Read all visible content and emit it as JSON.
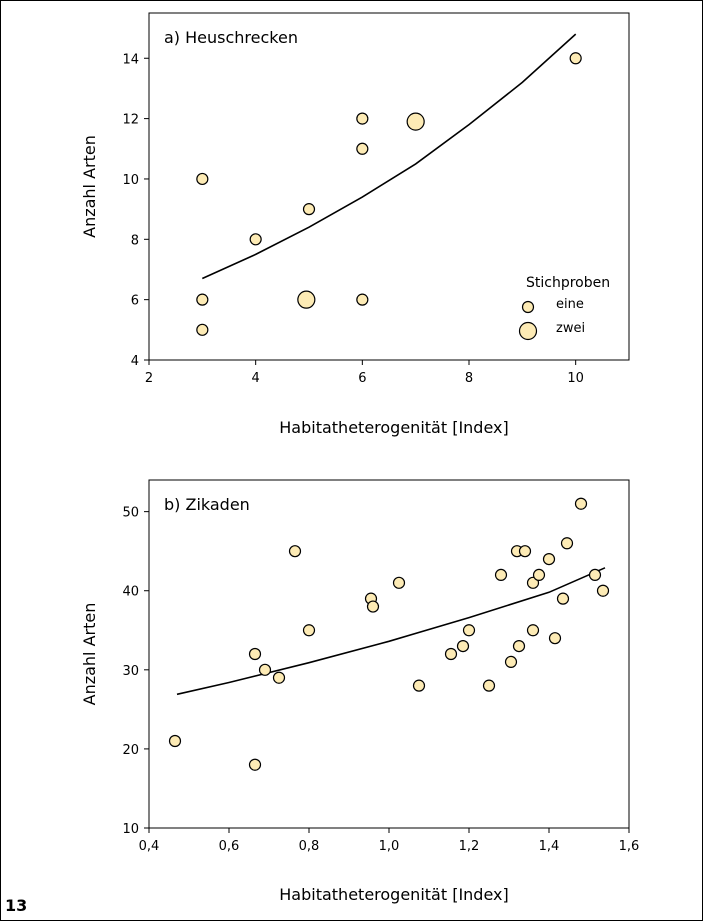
{
  "page_number": "13",
  "colors": {
    "marker_fill": "#FDEBB5",
    "marker_stroke": "#000000",
    "line": "#000000"
  },
  "chart_data": [
    {
      "type": "scatter",
      "title": "a) Heuschrecken",
      "xlabel": "Habitatheterogenität [Index]",
      "ylabel": "Anzahl Arten",
      "xlim": [
        2,
        11
      ],
      "ylim": [
        4,
        15.5
      ],
      "xticks": [
        2,
        4,
        6,
        8,
        10
      ],
      "xtick_labels": [
        "2",
        "4",
        "6",
        "8",
        "10"
      ],
      "yticks": [
        4,
        6,
        8,
        10,
        12,
        14
      ],
      "ytick_labels": [
        "4",
        "6",
        "8",
        "10",
        "12",
        "14"
      ],
      "points": [
        {
          "x": 3,
          "y": 10,
          "n": 1
        },
        {
          "x": 3,
          "y": 6,
          "n": 1
        },
        {
          "x": 3,
          "y": 5,
          "n": 1
        },
        {
          "x": 4,
          "y": 8,
          "n": 1
        },
        {
          "x": 5,
          "y": 9,
          "n": 1
        },
        {
          "x": 4.95,
          "y": 6,
          "n": 2
        },
        {
          "x": 6,
          "y": 12,
          "n": 1
        },
        {
          "x": 6,
          "y": 11,
          "n": 1
        },
        {
          "x": 6,
          "y": 6,
          "n": 1
        },
        {
          "x": 7,
          "y": 11.9,
          "n": 2
        },
        {
          "x": 10,
          "y": 14,
          "n": 1
        }
      ],
      "trend_line": {
        "model": "exponential",
        "x": [
          3,
          4,
          5,
          6,
          7,
          8,
          9,
          10
        ],
        "y": [
          6.7,
          7.5,
          8.4,
          9.4,
          10.5,
          11.8,
          13.2,
          14.8
        ]
      },
      "legend": {
        "title": "Stichproben",
        "items": [
          "eine",
          "zwei"
        ],
        "placement": "bottom-right"
      }
    },
    {
      "type": "scatter",
      "title": "b) Zikaden",
      "xlabel": "Habitatheterogenität [Index]",
      "ylabel": "Anzahl Arten",
      "xlim": [
        0.4,
        1.6
      ],
      "ylim": [
        10,
        54
      ],
      "xticks": [
        0.4,
        0.6,
        0.8,
        1.0,
        1.2,
        1.4,
        1.6
      ],
      "xtick_labels": [
        "0,4",
        "0,6",
        "0,8",
        "1,0",
        "1,2",
        "1,4",
        "1,6"
      ],
      "yticks": [
        10,
        20,
        30,
        40,
        50
      ],
      "ytick_labels": [
        "10",
        "20",
        "30",
        "40",
        "50"
      ],
      "points": [
        {
          "x": 0.465,
          "y": 21
        },
        {
          "x": 0.665,
          "y": 32
        },
        {
          "x": 0.665,
          "y": 18
        },
        {
          "x": 0.69,
          "y": 30
        },
        {
          "x": 0.725,
          "y": 29
        },
        {
          "x": 0.765,
          "y": 45
        },
        {
          "x": 0.8,
          "y": 35
        },
        {
          "x": 0.955,
          "y": 39
        },
        {
          "x": 0.96,
          "y": 38
        },
        {
          "x": 1.025,
          "y": 41
        },
        {
          "x": 1.075,
          "y": 28
        },
        {
          "x": 1.155,
          "y": 32
        },
        {
          "x": 1.185,
          "y": 33
        },
        {
          "x": 1.2,
          "y": 35
        },
        {
          "x": 1.25,
          "y": 28
        },
        {
          "x": 1.28,
          "y": 42
        },
        {
          "x": 1.305,
          "y": 31
        },
        {
          "x": 1.32,
          "y": 45
        },
        {
          "x": 1.325,
          "y": 33
        },
        {
          "x": 1.34,
          "y": 45
        },
        {
          "x": 1.36,
          "y": 41
        },
        {
          "x": 1.36,
          "y": 35
        },
        {
          "x": 1.375,
          "y": 42
        },
        {
          "x": 1.4,
          "y": 44
        },
        {
          "x": 1.415,
          "y": 34
        },
        {
          "x": 1.435,
          "y": 39
        },
        {
          "x": 1.445,
          "y": 46
        },
        {
          "x": 1.48,
          "y": 51
        },
        {
          "x": 1.515,
          "y": 42
        },
        {
          "x": 1.535,
          "y": 40
        }
      ],
      "trend_line": {
        "model": "exponential",
        "x": [
          0.47,
          0.6,
          0.8,
          1.0,
          1.2,
          1.4,
          1.54
        ],
        "y": [
          26.9,
          28.4,
          30.9,
          33.6,
          36.6,
          39.8,
          42.9
        ]
      }
    }
  ]
}
